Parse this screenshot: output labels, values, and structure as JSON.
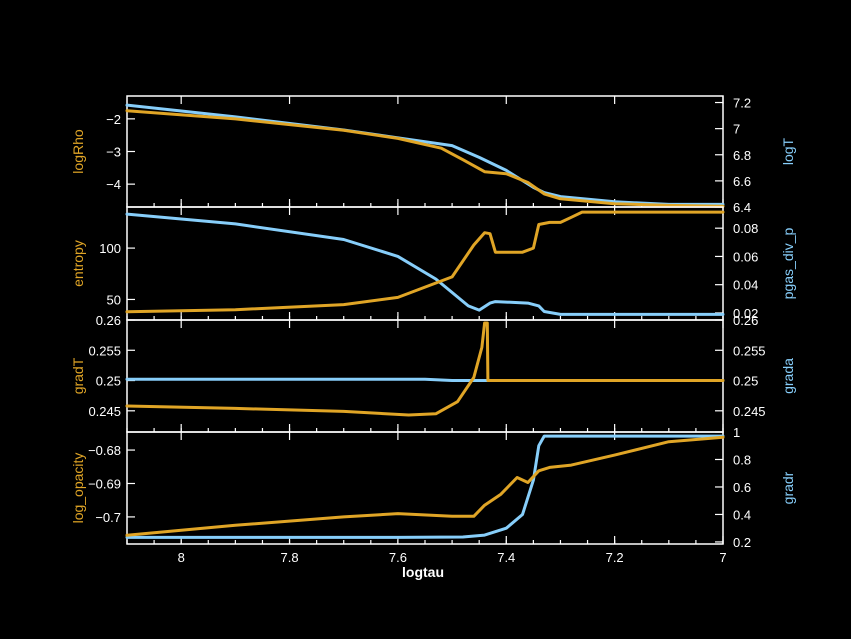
{
  "colors": {
    "left": "#E0A526",
    "right": "#87CEFA",
    "frame": "#FFFFFF",
    "bg": "#000000"
  },
  "chart_data": [
    {
      "type": "line",
      "xlabel": "logtau",
      "xlim": [
        8.1,
        7.0
      ],
      "x_ticks": [
        8,
        7.8,
        7.6,
        7.4,
        7.2,
        7
      ],
      "left": {
        "label": "logRho",
        "ylim": [
          -4.7,
          -1.3
        ],
        "ticks": [
          -2,
          -3,
          -4
        ],
        "x": [
          8.1,
          7.9,
          7.7,
          7.6,
          7.52,
          7.48,
          7.44,
          7.4,
          7.36,
          7.33,
          7.3,
          7.2,
          7.1,
          7.0
        ],
        "y": [
          -1.75,
          -2.0,
          -2.35,
          -2.6,
          -2.9,
          -3.25,
          -3.62,
          -3.68,
          -3.95,
          -4.3,
          -4.45,
          -4.6,
          -4.65,
          -4.68
        ]
      },
      "right": {
        "label": "logT",
        "ylim": [
          6.4,
          7.25
        ],
        "ticks": [
          7.2,
          7,
          6.8,
          6.6,
          6.4
        ],
        "x": [
          8.1,
          7.9,
          7.7,
          7.6,
          7.5,
          7.45,
          7.4,
          7.35,
          7.33,
          7.3,
          7.2,
          7.1,
          7.0
        ],
        "y": [
          7.18,
          7.09,
          6.99,
          6.93,
          6.87,
          6.78,
          6.68,
          6.55,
          6.51,
          6.48,
          6.44,
          6.42,
          6.42
        ]
      }
    },
    {
      "type": "line",
      "xlabel": "logtau",
      "xlim": [
        8.1,
        7.0
      ],
      "x_ticks": [
        8,
        7.8,
        7.6,
        7.4,
        7.2,
        7
      ],
      "left": {
        "label": "entropy",
        "ylim": [
          30,
          140
        ],
        "ticks": [
          100,
          50
        ],
        "x": [
          8.1,
          7.9,
          7.7,
          7.6,
          7.5,
          7.46,
          7.44,
          7.43,
          7.42,
          7.37,
          7.35,
          7.34,
          7.32,
          7.3,
          7.28,
          7.26,
          7.2,
          7.1,
          7.0
        ],
        "y": [
          38,
          40,
          45,
          52,
          72,
          103,
          115,
          114,
          96,
          96,
          100,
          123,
          125,
          125,
          130,
          135,
          135,
          135,
          135
        ]
      },
      "right": {
        "label": "pgas_div_p",
        "ylim": [
          0.015,
          0.095
        ],
        "ticks": [
          0.08,
          0.06,
          0.04,
          0.02
        ],
        "x": [
          8.1,
          7.9,
          7.7,
          7.6,
          7.53,
          7.47,
          7.45,
          7.43,
          7.42,
          7.36,
          7.34,
          7.33,
          7.3,
          7.2,
          7.1,
          7.0
        ],
        "y": [
          0.09,
          0.083,
          0.072,
          0.06,
          0.044,
          0.025,
          0.022,
          0.027,
          0.028,
          0.027,
          0.025,
          0.021,
          0.019,
          0.019,
          0.019,
          0.019
        ]
      }
    },
    {
      "type": "line",
      "xlabel": "logtau",
      "xlim": [
        8.1,
        7.0
      ],
      "x_ticks": [
        8,
        7.8,
        7.6,
        7.4,
        7.2,
        7
      ],
      "left": {
        "label": "gradT",
        "ylim": [
          0.2415,
          0.26
        ],
        "ticks": [
          0.26,
          0.255,
          0.25,
          0.245
        ],
        "x": [
          8.1,
          7.9,
          7.7,
          7.58,
          7.53,
          7.49,
          7.46,
          7.445,
          7.44,
          7.435,
          7.434,
          7.43,
          7.3,
          7.0
        ],
        "y": [
          0.2458,
          0.2454,
          0.2449,
          0.2443,
          0.2445,
          0.2465,
          0.2505,
          0.2555,
          0.2595,
          0.2595,
          0.25,
          0.25,
          0.25,
          0.25
        ]
      },
      "right": {
        "label": "grada",
        "ylim": [
          0.2415,
          0.26
        ],
        "ticks": [
          0.26,
          0.255,
          0.25,
          0.245
        ],
        "x": [
          8.1,
          7.8,
          7.55,
          7.5,
          7.45,
          7.2,
          7.0
        ],
        "y": [
          0.2502,
          0.2502,
          0.2502,
          0.25,
          0.25,
          0.25,
          0.25
        ]
      }
    },
    {
      "type": "line",
      "xlabel": "logtau",
      "xlim": [
        8.1,
        7.0
      ],
      "x_ticks": [
        8,
        7.8,
        7.6,
        7.4,
        7.2,
        7
      ],
      "left": {
        "label": "log_opacity",
        "ylim": [
          -0.7081,
          -0.6746
        ],
        "ticks": [
          -0.68,
          -0.69,
          -0.7
        ],
        "x": [
          8.1,
          7.9,
          7.7,
          7.6,
          7.5,
          7.46,
          7.44,
          7.41,
          7.38,
          7.36,
          7.34,
          7.32,
          7.28,
          7.2,
          7.1,
          7.0
        ],
        "y": [
          -0.7055,
          -0.7025,
          -0.7,
          -0.699,
          -0.6998,
          -0.6998,
          -0.6965,
          -0.6932,
          -0.6882,
          -0.6897,
          -0.6862,
          -0.6852,
          -0.6845,
          -0.6815,
          -0.6775,
          -0.6762
        ]
      },
      "right": {
        "label": "gradr",
        "ylim": [
          0.185,
          1.0
        ],
        "ticks": [
          1,
          0.8,
          0.6,
          0.4,
          0.2
        ],
        "x": [
          8.1,
          7.6,
          7.48,
          7.44,
          7.4,
          7.37,
          7.35,
          7.34,
          7.33,
          7.32,
          7.2,
          7.0
        ],
        "y": [
          0.233,
          0.233,
          0.236,
          0.25,
          0.3,
          0.4,
          0.65,
          0.9,
          0.97,
          0.97,
          0.97,
          0.97
        ]
      }
    }
  ]
}
